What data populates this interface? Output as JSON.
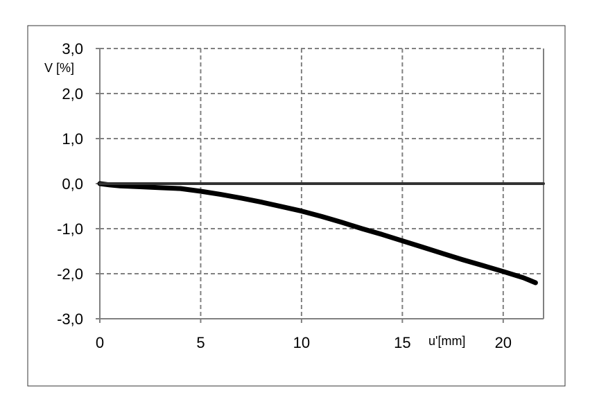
{
  "chart_data": {
    "type": "line",
    "title": "",
    "xlabel": "u'[mm]",
    "ylabel": "V [%]",
    "xlim": [
      0,
      22
    ],
    "ylim": [
      -3,
      3
    ],
    "x_ticks": [
      0,
      5,
      10,
      15,
      20
    ],
    "x_tick_labels": [
      "0",
      "5",
      "10",
      "15",
      "20"
    ],
    "y_ticks": [
      3,
      2,
      1,
      0,
      -1,
      -2,
      -3
    ],
    "y_tick_labels": [
      "3,0",
      "2,0",
      "1,0",
      "0,0",
      "-1,0",
      "-2,0",
      "-3,0"
    ],
    "grid": true,
    "grid_style": "dashed",
    "legend": "none",
    "series": [
      {
        "color": "#000000",
        "x": [
          0,
          0.5,
          1,
          2,
          3,
          4,
          5,
          6,
          7,
          8,
          9,
          10,
          11,
          12,
          13,
          14,
          15,
          16,
          17,
          18,
          19,
          20,
          21,
          21.6
        ],
        "y": [
          0.0,
          -0.03,
          -0.05,
          -0.07,
          -0.09,
          -0.11,
          -0.17,
          -0.24,
          -0.32,
          -0.41,
          -0.51,
          -0.61,
          -0.73,
          -0.86,
          -1.0,
          -1.13,
          -1.27,
          -1.41,
          -1.55,
          -1.69,
          -1.82,
          -1.95,
          -2.09,
          -2.2
        ]
      },
      {
        "color": "#333333",
        "x": [
          0,
          22
        ],
        "y": [
          0,
          0
        ]
      }
    ]
  }
}
